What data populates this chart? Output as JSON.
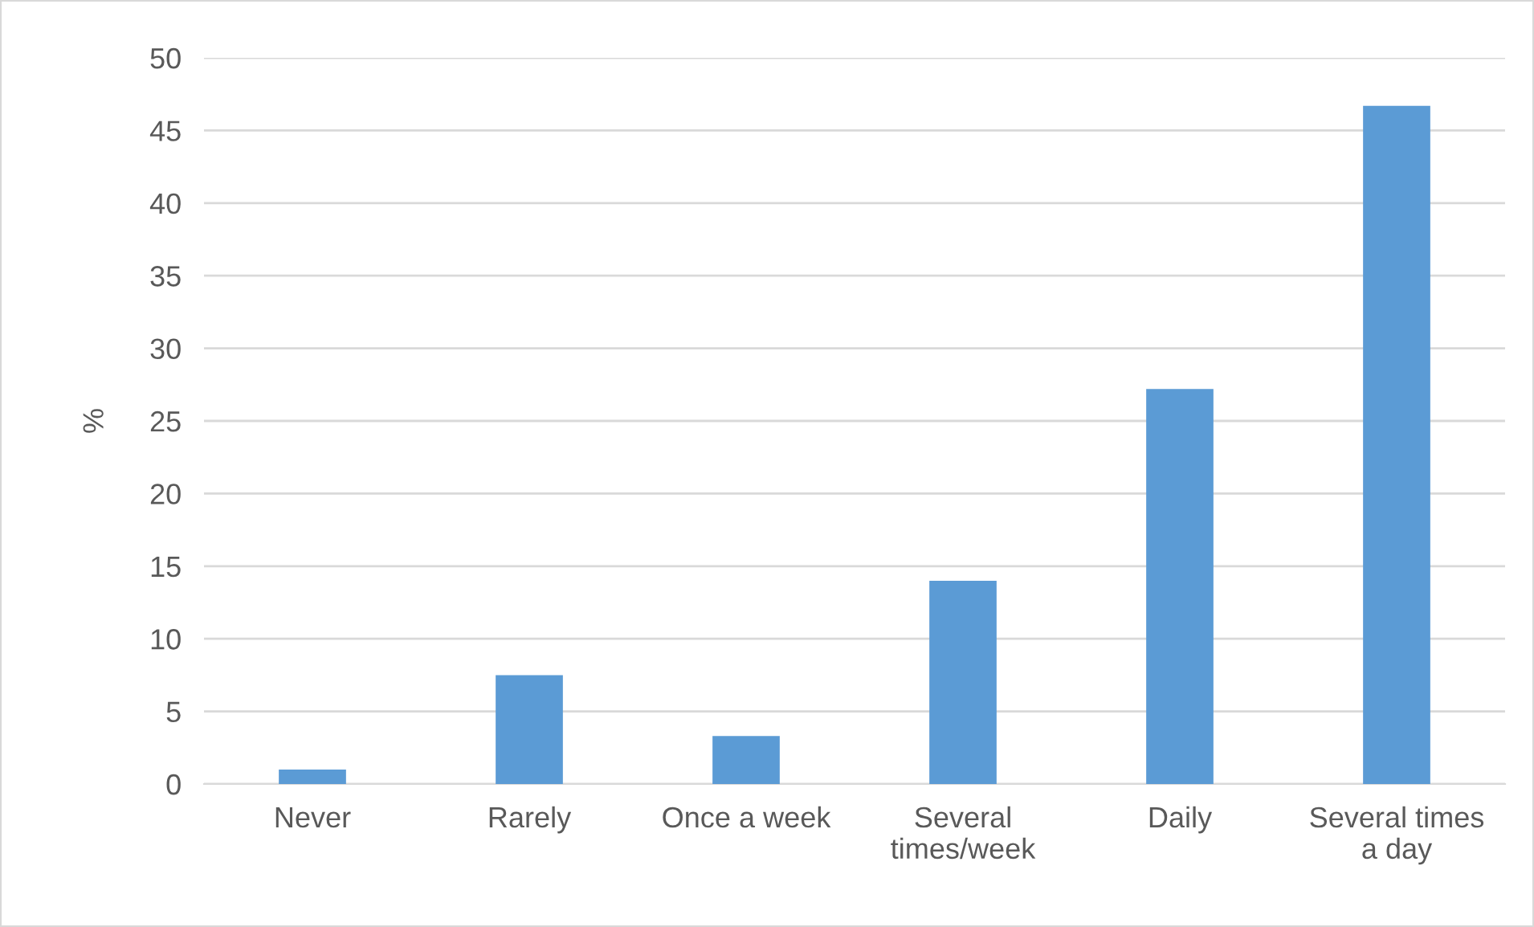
{
  "chart_data": {
    "type": "bar",
    "ylabel": "%",
    "categories": [
      "Never",
      "Rarely",
      "Once a week",
      "Several times/week",
      "Daily",
      "Several times a day"
    ],
    "values": [
      1.0,
      7.5,
      3.3,
      14.0,
      27.2,
      46.7
    ],
    "color": "#5b9bd5",
    "ylim": [
      0,
      50
    ],
    "yticks": [
      0,
      5,
      10,
      15,
      20,
      25,
      30,
      35,
      40,
      45,
      50
    ],
    "grid": "y"
  }
}
